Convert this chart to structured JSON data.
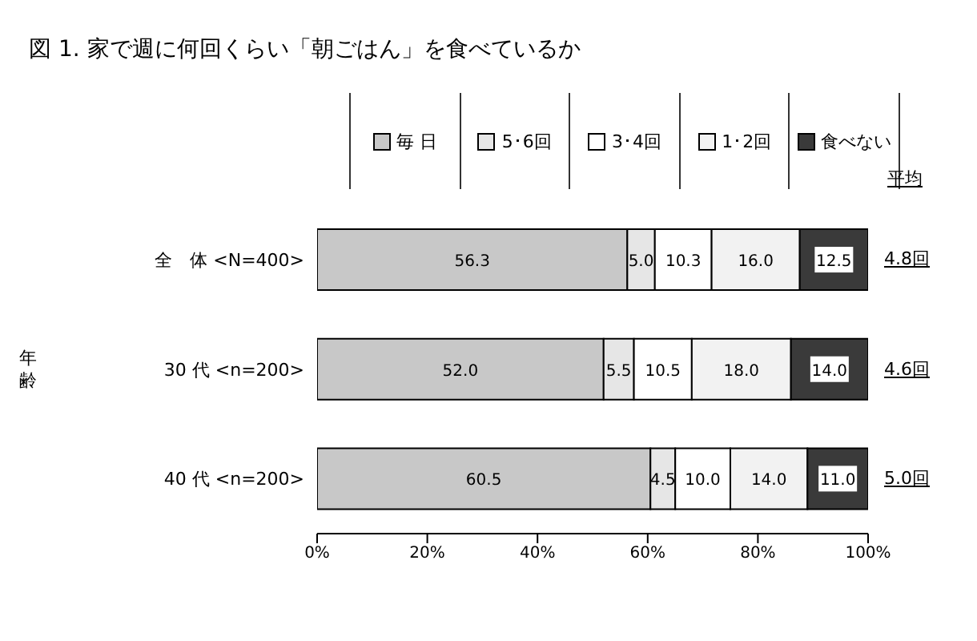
{
  "chart_data": {
    "type": "bar",
    "orientation": "horizontal",
    "stacked": true,
    "title": "図 1. 家で週に何回くらい「朝ごはん」を食べているか",
    "categories": [
      "全　体 <N=400>",
      "30 代 <n=200>",
      "40 代 <n=200>"
    ],
    "series": [
      {
        "name": "毎 日",
        "color": "#c8c8c8",
        "values": [
          56.3,
          52.0,
          60.5
        ],
        "value_labels": [
          "56.3",
          "52.0",
          "60.5"
        ]
      },
      {
        "name": "5･6回",
        "color": "#e6e6e6",
        "values": [
          5.0,
          5.5,
          4.5
        ],
        "value_labels": [
          "5.0",
          "5.5",
          "4.5"
        ]
      },
      {
        "name": "3･4回",
        "color": "#ffffff",
        "values": [
          10.3,
          10.5,
          10.0
        ],
        "value_labels": [
          "10.3",
          "10.5",
          "10.0"
        ]
      },
      {
        "name": "1･2回",
        "color": "#f2f2f2",
        "values": [
          16.0,
          18.0,
          14.0
        ],
        "value_labels": [
          "16.0",
          "18.0",
          "14.0"
        ]
      },
      {
        "name": "食べない",
        "color": "#3a3a3a",
        "values": [
          12.5,
          14.0,
          11.0
        ],
        "value_labels": [
          "12.5",
          "14.0",
          "11.0"
        ]
      }
    ],
    "xlim": [
      0,
      100
    ],
    "xticks": [
      {
        "value": 0,
        "label": "0%"
      },
      {
        "value": 20,
        "label": "20%"
      },
      {
        "value": 40,
        "label": "40%"
      },
      {
        "value": 60,
        "label": "60%"
      },
      {
        "value": 80,
        "label": "80%"
      },
      {
        "value": 100,
        "label": "100%"
      }
    ],
    "legend": "top",
    "annotations": [
      "年齢",
      "平均",
      "4.8回",
      "4.6回",
      "5.0回"
    ]
  }
}
